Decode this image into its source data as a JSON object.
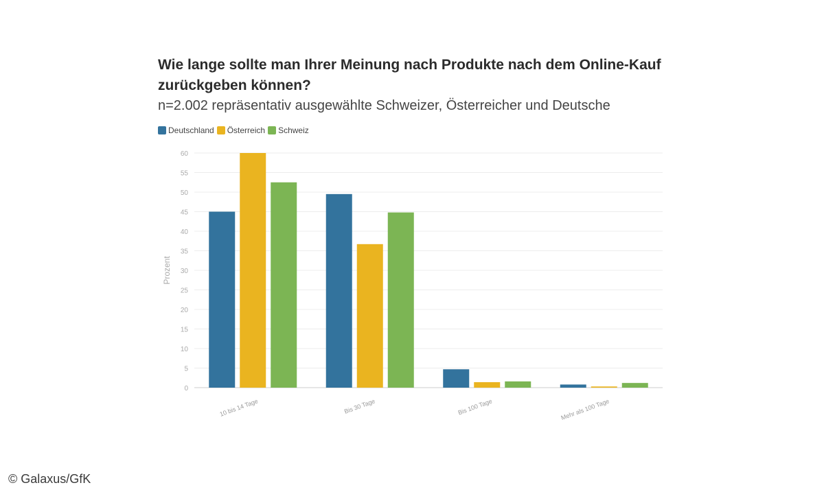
{
  "credit": "© Galaxus/GfK",
  "colors": {
    "grid": "#ececec",
    "axis_text": "#aaaaaa"
  },
  "chart_data": {
    "type": "bar",
    "title": "Wie lange sollte man Ihrer Meinung nach Produkte nach dem Online-Kauf zurückgeben können?",
    "subtitle": "n=2.002 repräsentativ ausgewählte Schweizer, Österreicher und Deutsche",
    "ylabel": "Prozent",
    "xlabel": "",
    "ylim": [
      0,
      60
    ],
    "yticks": [
      0,
      5,
      10,
      15,
      20,
      25,
      30,
      35,
      40,
      45,
      50,
      55,
      60
    ],
    "grid": true,
    "legend_position": "top-left",
    "categories": [
      "10 bis 14 Tage",
      "Bis 30 Tage",
      "Bis 100 Tage",
      "Mehr als 100 Tage"
    ],
    "series": [
      {
        "name": "Deutschland",
        "color": "#33739d",
        "values": [
          45,
          49.5,
          4.7,
          0.8
        ]
      },
      {
        "name": "Österreich",
        "color": "#eab420",
        "values": [
          60,
          36.7,
          1.4,
          0.3
        ]
      },
      {
        "name": "Schweiz",
        "color": "#7cb554",
        "values": [
          52.5,
          44.8,
          1.6,
          1.2
        ]
      }
    ]
  }
}
